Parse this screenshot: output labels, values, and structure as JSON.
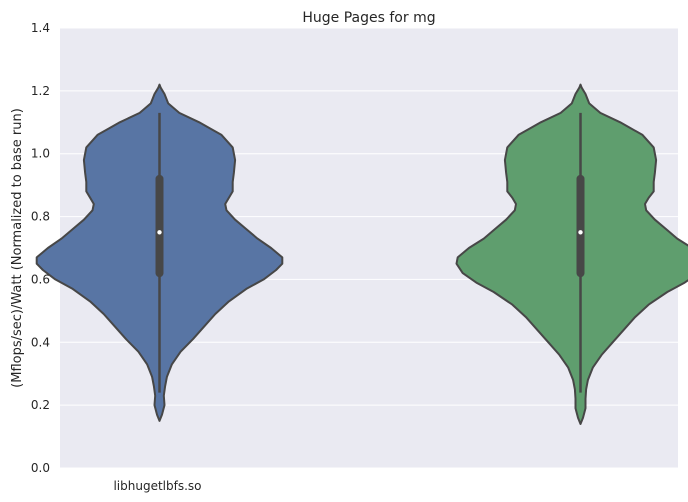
{
  "chart_data": {
    "type": "violin",
    "title": "Huge Pages for mg",
    "xlabel": "",
    "ylabel": "(Mflops/sec)/Watt (Normalized to base run)",
    "ylim": [
      0.0,
      1.4
    ],
    "yticks": [
      "0.0",
      "0.2",
      "0.4",
      "0.6",
      "0.8",
      "1.0",
      "1.2",
      "1.4"
    ],
    "grid": true,
    "legend": "none",
    "categories": [
      "libhugetlbfs.so",
      ""
    ],
    "series": [
      {
        "fill": "#5875a4",
        "min": 0.24,
        "q1": 0.62,
        "median": 0.75,
        "q3": 0.92,
        "max": 1.13,
        "profile": [
          [
            0.15,
            0.0
          ],
          [
            0.17,
            0.02
          ],
          [
            0.2,
            0.04
          ],
          [
            0.23,
            0.035
          ],
          [
            0.26,
            0.045
          ],
          [
            0.29,
            0.06
          ],
          [
            0.33,
            0.1
          ],
          [
            0.37,
            0.17
          ],
          [
            0.41,
            0.27
          ],
          [
            0.45,
            0.36
          ],
          [
            0.49,
            0.45
          ],
          [
            0.53,
            0.56
          ],
          [
            0.57,
            0.7
          ],
          [
            0.6,
            0.84
          ],
          [
            0.63,
            0.94
          ],
          [
            0.65,
            0.99
          ],
          [
            0.67,
            0.99
          ],
          [
            0.7,
            0.9
          ],
          [
            0.73,
            0.79
          ],
          [
            0.76,
            0.7
          ],
          [
            0.79,
            0.61
          ],
          [
            0.82,
            0.54
          ],
          [
            0.84,
            0.53
          ],
          [
            0.86,
            0.56
          ],
          [
            0.88,
            0.59
          ],
          [
            0.91,
            0.59
          ],
          [
            0.94,
            0.6
          ],
          [
            0.98,
            0.61
          ],
          [
            1.02,
            0.59
          ],
          [
            1.06,
            0.5
          ],
          [
            1.1,
            0.32
          ],
          [
            1.13,
            0.16
          ],
          [
            1.16,
            0.07
          ],
          [
            1.19,
            0.04
          ],
          [
            1.21,
            0.01
          ],
          [
            1.22,
            0.0
          ]
        ]
      },
      {
        "fill": "#5f9e6e",
        "min": 0.24,
        "q1": 0.62,
        "median": 0.75,
        "q3": 0.92,
        "max": 1.13,
        "profile": [
          [
            0.14,
            0.0
          ],
          [
            0.16,
            0.02
          ],
          [
            0.19,
            0.04
          ],
          [
            0.22,
            0.04
          ],
          [
            0.25,
            0.045
          ],
          [
            0.28,
            0.06
          ],
          [
            0.32,
            0.1
          ],
          [
            0.36,
            0.17
          ],
          [
            0.4,
            0.26
          ],
          [
            0.44,
            0.35
          ],
          [
            0.48,
            0.44
          ],
          [
            0.52,
            0.55
          ],
          [
            0.56,
            0.7
          ],
          [
            0.59,
            0.84
          ],
          [
            0.62,
            0.95
          ],
          [
            0.65,
            1.0
          ],
          [
            0.67,
            0.99
          ],
          [
            0.7,
            0.9
          ],
          [
            0.73,
            0.78
          ],
          [
            0.76,
            0.69
          ],
          [
            0.79,
            0.6
          ],
          [
            0.82,
            0.53
          ],
          [
            0.84,
            0.52
          ],
          [
            0.86,
            0.55
          ],
          [
            0.88,
            0.59
          ],
          [
            0.91,
            0.59
          ],
          [
            0.94,
            0.6
          ],
          [
            0.98,
            0.61
          ],
          [
            1.02,
            0.59
          ],
          [
            1.06,
            0.5
          ],
          [
            1.1,
            0.32
          ],
          [
            1.13,
            0.16
          ],
          [
            1.16,
            0.07
          ],
          [
            1.19,
            0.04
          ],
          [
            1.21,
            0.01
          ],
          [
            1.22,
            0.0
          ]
        ]
      }
    ]
  }
}
